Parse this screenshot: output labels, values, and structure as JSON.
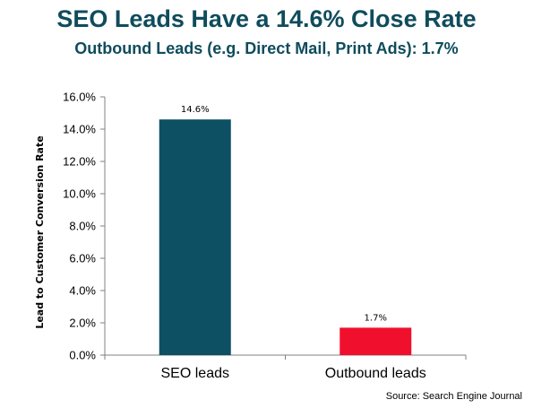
{
  "chart_data": {
    "type": "bar",
    "title": "SEO Leads Have a 14.6% Close Rate",
    "subtitle": "Outbound Leads (e.g. Direct Mail, Print Ads): 1.7%",
    "xlabel": "",
    "ylabel": "Lead to Customer Conversion Rate",
    "categories": [
      "SEO leads",
      "Outbound leads"
    ],
    "values": [
      14.6,
      1.7
    ],
    "data_labels": [
      "14.6%",
      "1.7%"
    ],
    "ylim": [
      0,
      16
    ],
    "yticks": [
      0,
      2,
      4,
      6,
      8,
      10,
      12,
      14,
      16
    ],
    "ytick_labels": [
      "0.0%",
      "2.0%",
      "4.0%",
      "6.0%",
      "8.0%",
      "10.0%",
      "12.0%",
      "14.0%",
      "16.0%"
    ],
    "grid": false,
    "legend": "none",
    "colors": [
      "#0d4f63",
      "#f0102e"
    ]
  },
  "source": "Source: Search Engine Journal",
  "colors": {
    "title": "#0f4c5c",
    "axis": "#808080"
  }
}
